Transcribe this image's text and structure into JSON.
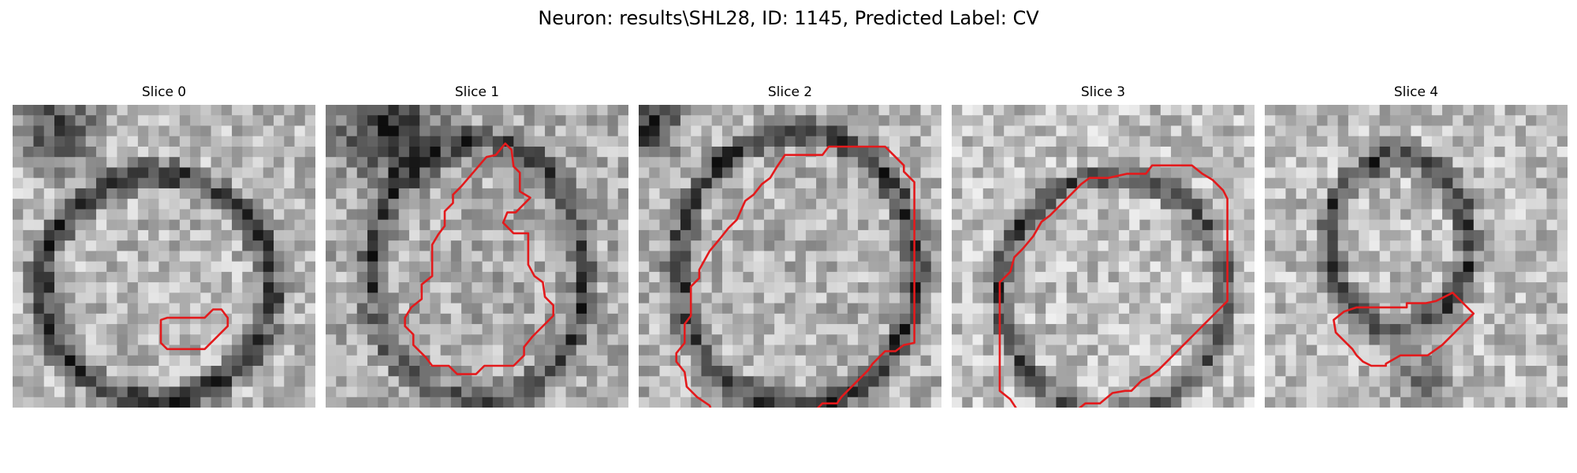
{
  "figure": {
    "title": "Neuron: results\\SHL28, ID: 1145, Predicted Label: CV"
  },
  "colors": {
    "contour": "#e31a1c",
    "background": "#ffffff"
  },
  "image_grid_cells": 29,
  "panels": [
    {
      "title": "Slice 0",
      "image": {
        "seed": 11,
        "ring": {
          "cx": 13.8,
          "cy": 17.5,
          "rx": 11.0,
          "ry": 10.8,
          "width": 1.9,
          "strength": 0.55
        },
        "dark_corners": [
          {
            "cx": 4,
            "cy": 2,
            "r": 6,
            "s": 0.45
          }
        ],
        "base": 0.72
      },
      "contour": [
        [
          14.2,
          20.6
        ],
        [
          14.2,
          22.8
        ],
        [
          14.8,
          23.4
        ],
        [
          18.4,
          23.4
        ],
        [
          20.6,
          21.2
        ],
        [
          20.6,
          20.4
        ],
        [
          20.0,
          19.6
        ],
        [
          19.2,
          19.6
        ],
        [
          18.4,
          20.4
        ],
        [
          14.8,
          20.4
        ]
      ]
    },
    {
      "title": "Slice 1",
      "image": {
        "seed": 23,
        "ring": {
          "cx": 14.6,
          "cy": 16.0,
          "rx": 10.2,
          "ry": 12.5,
          "width": 1.8,
          "strength": 0.42
        },
        "dark_corners": [
          {
            "cx": 6,
            "cy": 2,
            "r": 7,
            "s": 0.55
          }
        ],
        "base": 0.68
      },
      "contour": [
        [
          16.3,
          4.8
        ],
        [
          17.2,
          3.7
        ],
        [
          17.8,
          4.3
        ],
        [
          18.0,
          5.9
        ],
        [
          18.6,
          6.5
        ],
        [
          18.6,
          8.3
        ],
        [
          19.6,
          8.9
        ],
        [
          18.2,
          10.3
        ],
        [
          17.4,
          10.3
        ],
        [
          17.0,
          11.3
        ],
        [
          18.0,
          12.3
        ],
        [
          19.4,
          12.3
        ],
        [
          19.4,
          15.3
        ],
        [
          20.0,
          16.4
        ],
        [
          20.8,
          17.0
        ],
        [
          21.0,
          18.4
        ],
        [
          21.8,
          19.2
        ],
        [
          21.8,
          20.2
        ],
        [
          19.8,
          22.2
        ],
        [
          19.0,
          23.2
        ],
        [
          19.0,
          24.0
        ],
        [
          18.0,
          25.0
        ],
        [
          15.2,
          25.0
        ],
        [
          14.4,
          25.8
        ],
        [
          12.6,
          25.8
        ],
        [
          11.8,
          25.0
        ],
        [
          10.2,
          25.0
        ],
        [
          9.6,
          24.2
        ],
        [
          8.4,
          23.0
        ],
        [
          8.4,
          22.0
        ],
        [
          7.6,
          21.2
        ],
        [
          7.6,
          20.4
        ],
        [
          8.2,
          19.4
        ],
        [
          9.2,
          18.6
        ],
        [
          9.2,
          17.2
        ],
        [
          10.2,
          16.4
        ],
        [
          10.2,
          13.4
        ],
        [
          10.8,
          12.4
        ],
        [
          11.4,
          11.6
        ],
        [
          11.4,
          10.2
        ],
        [
          12.2,
          9.4
        ],
        [
          12.2,
          8.6
        ],
        [
          13.0,
          7.8
        ],
        [
          15.4,
          5.0
        ]
      ]
    },
    {
      "title": "Slice 2",
      "image": {
        "seed": 37,
        "ring": {
          "cx": 15.2,
          "cy": 15.8,
          "rx": 11.4,
          "ry": 13.2,
          "width": 1.6,
          "strength": 0.55
        },
        "dark_corners": [
          {
            "cx": 1,
            "cy": 2,
            "r": 4,
            "s": 0.6
          }
        ],
        "base": 0.7
      },
      "contour": [
        [
          14.0,
          4.8
        ],
        [
          17.6,
          4.8
        ],
        [
          18.2,
          4.0
        ],
        [
          23.6,
          4.0
        ],
        [
          24.4,
          4.8
        ],
        [
          25.4,
          5.8
        ],
        [
          25.4,
          6.4
        ],
        [
          26.2,
          7.2
        ],
        [
          26.4,
          7.4
        ],
        [
          26.4,
          22.8
        ],
        [
          25.4,
          23.0
        ],
        [
          24.6,
          23.6
        ],
        [
          23.6,
          23.6
        ],
        [
          22.4,
          24.8
        ],
        [
          22.0,
          25.4
        ],
        [
          20.2,
          27.2
        ],
        [
          19.4,
          28.0
        ],
        [
          19.0,
          28.6
        ],
        [
          17.6,
          28.6
        ],
        [
          16.8,
          29.4
        ],
        [
          16.6,
          30.0
        ],
        [
          14.2,
          30.4
        ],
        [
          11.6,
          30.4
        ],
        [
          8.6,
          30.4
        ],
        [
          7.8,
          29.6
        ],
        [
          7.0,
          29.4
        ],
        [
          6.8,
          28.8
        ],
        [
          5.6,
          28.0
        ],
        [
          4.6,
          27.0
        ],
        [
          4.4,
          25.6
        ],
        [
          3.6,
          24.6
        ],
        [
          3.6,
          23.8
        ],
        [
          4.4,
          22.8
        ],
        [
          4.4,
          21.0
        ],
        [
          5.0,
          20.2
        ],
        [
          5.0,
          17.4
        ],
        [
          5.8,
          16.6
        ],
        [
          5.8,
          15.8
        ],
        [
          6.8,
          14.0
        ],
        [
          7.8,
          12.8
        ],
        [
          8.6,
          11.8
        ],
        [
          9.4,
          11.0
        ],
        [
          10.2,
          9.2
        ],
        [
          11.0,
          8.6
        ],
        [
          11.8,
          7.6
        ],
        [
          12.6,
          7.0
        ],
        [
          13.2,
          6.0
        ]
      ]
    },
    {
      "title": "Slice 3",
      "image": {
        "seed": 41,
        "ring": {
          "cx": 15.4,
          "cy": 18.2,
          "rx": 10.8,
          "ry": 11.4,
          "width": 1.6,
          "strength": 0.45
        },
        "dark_corners": [],
        "base": 0.75
      },
      "contour": [
        [
          16.8,
          6.6
        ],
        [
          18.6,
          6.6
        ],
        [
          19.2,
          5.8
        ],
        [
          23.0,
          5.8
        ],
        [
          24.0,
          6.6
        ],
        [
          25.0,
          7.2
        ],
        [
          26.0,
          8.2
        ],
        [
          26.4,
          9.0
        ],
        [
          26.4,
          18.8
        ],
        [
          25.0,
          20.2
        ],
        [
          23.6,
          21.6
        ],
        [
          22.2,
          23.0
        ],
        [
          21.0,
          24.2
        ],
        [
          19.8,
          25.4
        ],
        [
          19.0,
          26.0
        ],
        [
          18.2,
          26.4
        ],
        [
          17.2,
          27.4
        ],
        [
          16.6,
          27.4
        ],
        [
          15.4,
          27.6
        ],
        [
          14.2,
          28.6
        ],
        [
          12.8,
          28.6
        ],
        [
          11.8,
          29.4
        ],
        [
          11.0,
          30.2
        ],
        [
          8.4,
          30.2
        ],
        [
          7.8,
          29.6
        ],
        [
          6.4,
          29.4
        ],
        [
          5.6,
          28.2
        ],
        [
          4.6,
          27.4
        ],
        [
          4.6,
          17.0
        ],
        [
          5.6,
          16.0
        ],
        [
          6.0,
          14.6
        ],
        [
          6.8,
          13.8
        ],
        [
          7.8,
          12.6
        ],
        [
          8.6,
          11.2
        ],
        [
          9.4,
          10.6
        ],
        [
          11.4,
          8.6
        ],
        [
          12.4,
          7.6
        ],
        [
          13.2,
          7.0
        ],
        [
          15.0,
          7.0
        ]
      ]
    },
    {
      "title": "Slice 4",
      "image": {
        "seed": 53,
        "ring": {
          "cx": 12.8,
          "cy": 13.2,
          "rx": 6.6,
          "ry": 8.2,
          "width": 1.7,
          "strength": 0.5
        },
        "dark_corners": [
          {
            "cx": 15,
            "cy": 26,
            "r": 4,
            "s": 0.35
          }
        ],
        "base": 0.74
      },
      "contour": [
        [
          8.8,
          19.4
        ],
        [
          10.6,
          19.4
        ],
        [
          13.6,
          19.4
        ],
        [
          13.6,
          19.0
        ],
        [
          15.4,
          19.0
        ],
        [
          16.4,
          18.8
        ],
        [
          18.0,
          18.0
        ],
        [
          20.0,
          20.0
        ],
        [
          18.2,
          21.8
        ],
        [
          17.0,
          23.0
        ],
        [
          15.6,
          24.0
        ],
        [
          13.0,
          24.0
        ],
        [
          11.6,
          24.8
        ],
        [
          11.6,
          25.0
        ],
        [
          10.2,
          25.0
        ],
        [
          9.4,
          24.6
        ],
        [
          8.8,
          24.0
        ],
        [
          8.4,
          23.4
        ],
        [
          7.6,
          22.6
        ],
        [
          6.8,
          21.8
        ],
        [
          6.6,
          20.6
        ],
        [
          7.6,
          19.8
        ]
      ]
    }
  ]
}
